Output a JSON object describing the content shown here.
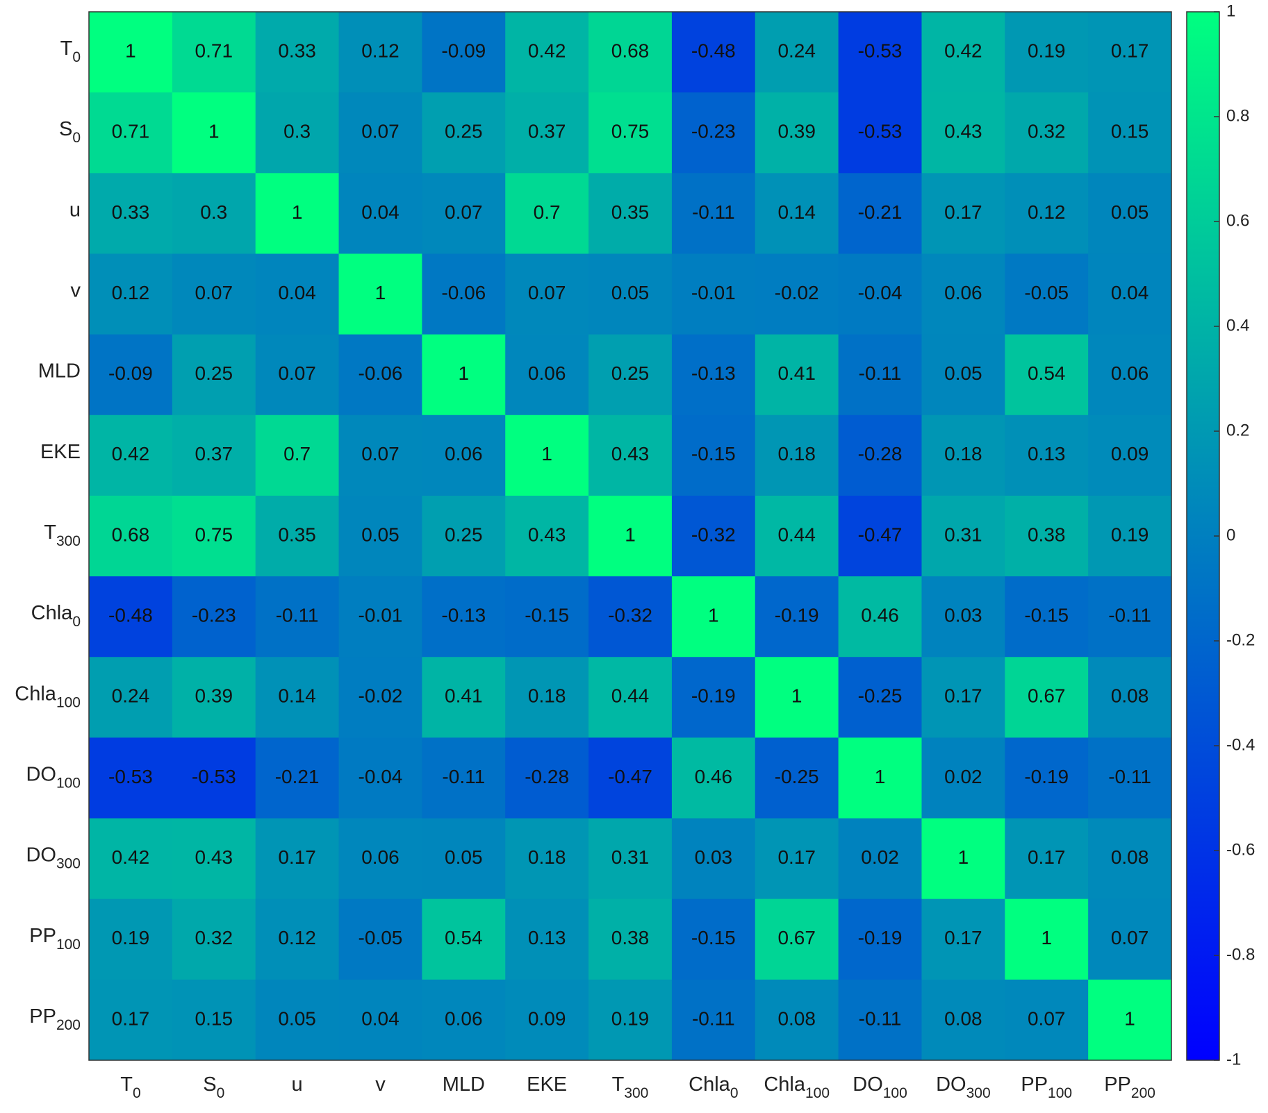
{
  "chart_data": {
    "type": "heatmap",
    "labels": [
      {
        "text": "T",
        "sub": "0"
      },
      {
        "text": "S",
        "sub": "0"
      },
      {
        "text": "u"
      },
      {
        "text": "v"
      },
      {
        "text": "MLD"
      },
      {
        "text": "EKE"
      },
      {
        "text": "T",
        "sub": "300"
      },
      {
        "text": "Chla",
        "sub": "0"
      },
      {
        "text": "Chla",
        "sub": "100"
      },
      {
        "text": "DO",
        "sub": "100"
      },
      {
        "text": "DO",
        "sub": "300"
      },
      {
        "text": "PP",
        "sub": "100"
      },
      {
        "text": "PP",
        "sub": "200"
      }
    ],
    "values": [
      [
        1,
        0.71,
        0.33,
        0.12,
        -0.09,
        0.42,
        0.68,
        -0.48,
        0.24,
        -0.53,
        0.42,
        0.19,
        0.17
      ],
      [
        0.71,
        1,
        0.3,
        0.07,
        0.25,
        0.37,
        0.75,
        -0.23,
        0.39,
        -0.53,
        0.43,
        0.32,
        0.15
      ],
      [
        0.33,
        0.3,
        1,
        0.04,
        0.07,
        0.7,
        0.35,
        -0.11,
        0.14,
        -0.21,
        0.17,
        0.12,
        0.05
      ],
      [
        0.12,
        0.07,
        0.04,
        1,
        -0.06,
        0.07,
        0.05,
        -0.01,
        -0.02,
        -0.04,
        0.06,
        -0.05,
        0.04
      ],
      [
        -0.09,
        0.25,
        0.07,
        -0.06,
        1,
        0.06,
        0.25,
        -0.13,
        0.41,
        -0.11,
        0.05,
        0.54,
        0.06
      ],
      [
        0.42,
        0.37,
        0.7,
        0.07,
        0.06,
        1,
        0.43,
        -0.15,
        0.18,
        -0.28,
        0.18,
        0.13,
        0.09
      ],
      [
        0.68,
        0.75,
        0.35,
        0.05,
        0.25,
        0.43,
        1,
        -0.32,
        0.44,
        -0.47,
        0.31,
        0.38,
        0.19
      ],
      [
        -0.48,
        -0.23,
        -0.11,
        -0.01,
        -0.13,
        -0.15,
        -0.32,
        1,
        -0.19,
        0.46,
        0.03,
        -0.15,
        -0.11
      ],
      [
        0.24,
        0.39,
        0.14,
        -0.02,
        0.41,
        0.18,
        0.44,
        -0.19,
        1,
        -0.25,
        0.17,
        0.67,
        0.08
      ],
      [
        -0.53,
        -0.53,
        -0.21,
        -0.04,
        -0.11,
        -0.28,
        -0.47,
        0.46,
        -0.25,
        1,
        0.02,
        -0.19,
        -0.11
      ],
      [
        0.42,
        0.43,
        0.17,
        0.06,
        0.05,
        0.18,
        0.31,
        0.03,
        0.17,
        0.02,
        1,
        0.17,
        0.08
      ],
      [
        0.19,
        0.32,
        0.12,
        -0.05,
        0.54,
        0.13,
        0.38,
        -0.15,
        0.67,
        -0.19,
        0.17,
        1,
        0.07
      ],
      [
        0.17,
        0.15,
        0.05,
        0.04,
        0.06,
        0.09,
        0.19,
        -0.11,
        0.08,
        -0.11,
        0.08,
        0.07,
        1
      ]
    ],
    "clim": [
      -1,
      1
    ],
    "colors": [
      "#0000ff",
      "#00ff80"
    ],
    "cticks": [
      -1,
      -0.8,
      -0.6,
      -0.4,
      -0.2,
      0,
      0.2,
      0.4,
      0.6,
      0.8,
      1
    ]
  }
}
